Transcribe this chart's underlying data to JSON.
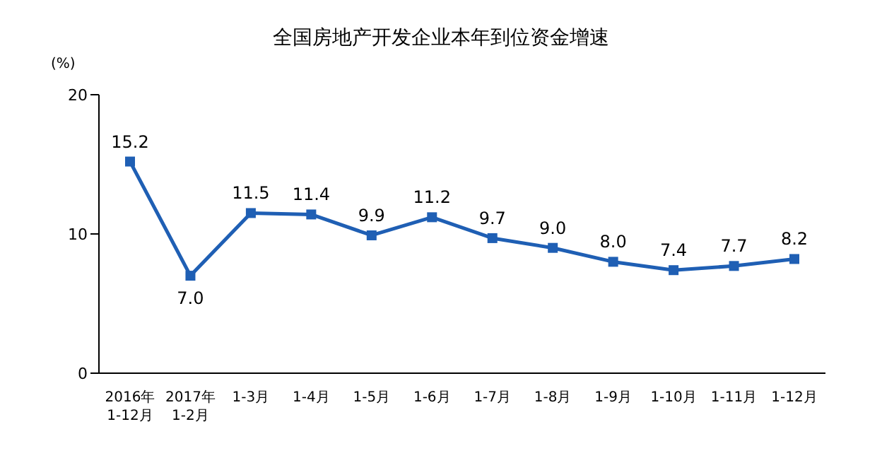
{
  "chart_data": {
    "type": "line",
    "title": "全国房地产开发企业本年到位资金增速",
    "ylabel": "(%)",
    "categories": [
      "2016年\n1-12月",
      "2017年\n1-2月",
      "1-3月",
      "1-4月",
      "1-5月",
      "1-6月",
      "1-7月",
      "1-8月",
      "1-9月",
      "1-10月",
      "1-11月",
      "1-12月"
    ],
    "series": [
      {
        "color": "#1f5fb4",
        "values": [
          15.2,
          7.0,
          11.5,
          11.4,
          9.9,
          11.2,
          9.7,
          9.0,
          8.0,
          7.4,
          7.7,
          8.2
        ],
        "value_labels": [
          "15.2",
          "7.0",
          "11.5",
          "11.4",
          "9.9",
          "11.2",
          "9.7",
          "9.0",
          "8.0",
          "7.4",
          "7.7",
          "8.2"
        ]
      }
    ],
    "ylim": [
      0,
      20
    ],
    "yticks": [
      0,
      10,
      20
    ],
    "marker": "square",
    "line_style": "solid"
  }
}
